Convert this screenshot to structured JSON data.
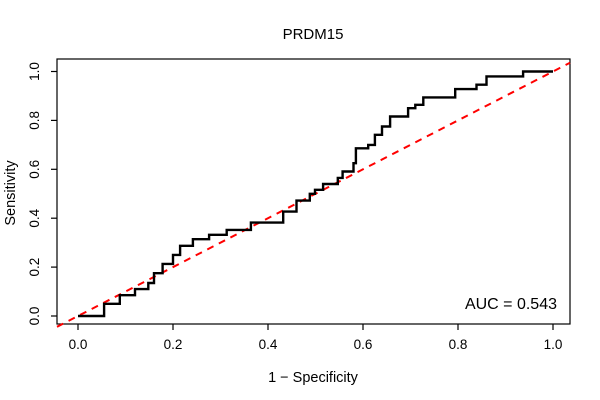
{
  "figure": {
    "background": "#ffffff",
    "curve_color": "#000000",
    "reference_color": "#ff0000",
    "axis_color": "#000000"
  },
  "chart_data": {
    "type": "line",
    "subtype": "roc-step-curve",
    "title": "PRDM15",
    "xlabel": "1 − Specificity",
    "ylabel": "Sensitivity",
    "xlim": [
      0.0,
      1.0
    ],
    "ylim": [
      0.0,
      1.0
    ],
    "x_ticks": [
      0.0,
      0.2,
      0.4,
      0.6,
      0.8,
      1.0
    ],
    "y_ticks": [
      0.0,
      0.2,
      0.4,
      0.6,
      0.8,
      1.0
    ],
    "x_tick_labels": [
      "0.0",
      "0.2",
      "0.4",
      "0.6",
      "0.8",
      "1.0"
    ],
    "y_tick_labels": [
      "0.0",
      "0.2",
      "0.4",
      "0.6",
      "0.8",
      "1.0"
    ],
    "grid": false,
    "annotation": "AUC = 0.543",
    "auc_value": 0.543,
    "series": [
      {
        "name": "ROC curve (PRDM15)",
        "style": "step",
        "color": "#000000",
        "points": [
          [
            0.0,
            0.0
          ],
          [
            0.055,
            0.0
          ],
          [
            0.055,
            0.05
          ],
          [
            0.088,
            0.05
          ],
          [
            0.088,
            0.085
          ],
          [
            0.12,
            0.085
          ],
          [
            0.12,
            0.11
          ],
          [
            0.148,
            0.11
          ],
          [
            0.148,
            0.135
          ],
          [
            0.16,
            0.135
          ],
          [
            0.16,
            0.175
          ],
          [
            0.178,
            0.175
          ],
          [
            0.178,
            0.213
          ],
          [
            0.2,
            0.213
          ],
          [
            0.2,
            0.25
          ],
          [
            0.215,
            0.25
          ],
          [
            0.215,
            0.287
          ],
          [
            0.242,
            0.287
          ],
          [
            0.242,
            0.314
          ],
          [
            0.276,
            0.314
          ],
          [
            0.276,
            0.332
          ],
          [
            0.313,
            0.332
          ],
          [
            0.313,
            0.352
          ],
          [
            0.364,
            0.352
          ],
          [
            0.364,
            0.382
          ],
          [
            0.432,
            0.382
          ],
          [
            0.432,
            0.427
          ],
          [
            0.46,
            0.427
          ],
          [
            0.46,
            0.472
          ],
          [
            0.488,
            0.472
          ],
          [
            0.488,
            0.5
          ],
          [
            0.499,
            0.5
          ],
          [
            0.499,
            0.516
          ],
          [
            0.516,
            0.516
          ],
          [
            0.516,
            0.54
          ],
          [
            0.547,
            0.54
          ],
          [
            0.547,
            0.565
          ],
          [
            0.557,
            0.565
          ],
          [
            0.557,
            0.591
          ],
          [
            0.58,
            0.591
          ],
          [
            0.58,
            0.625
          ],
          [
            0.585,
            0.625
          ],
          [
            0.585,
            0.686
          ],
          [
            0.611,
            0.686
          ],
          [
            0.611,
            0.7
          ],
          [
            0.625,
            0.7
          ],
          [
            0.625,
            0.741
          ],
          [
            0.64,
            0.741
          ],
          [
            0.64,
            0.775
          ],
          [
            0.657,
            0.775
          ],
          [
            0.657,
            0.816
          ],
          [
            0.695,
            0.816
          ],
          [
            0.695,
            0.85
          ],
          [
            0.71,
            0.85
          ],
          [
            0.71,
            0.864
          ],
          [
            0.727,
            0.864
          ],
          [
            0.727,
            0.894
          ],
          [
            0.794,
            0.894
          ],
          [
            0.794,
            0.928
          ],
          [
            0.839,
            0.928
          ],
          [
            0.839,
            0.946
          ],
          [
            0.86,
            0.946
          ],
          [
            0.86,
            0.98
          ],
          [
            0.937,
            0.98
          ],
          [
            0.937,
            1.0
          ],
          [
            1.0,
            1.0
          ]
        ]
      },
      {
        "name": "chance diagonal",
        "style": "dashed-line",
        "color": "#ff0000",
        "points": [
          [
            0.0,
            0.0
          ],
          [
            1.0,
            1.0
          ]
        ]
      }
    ],
    "legend": null
  }
}
